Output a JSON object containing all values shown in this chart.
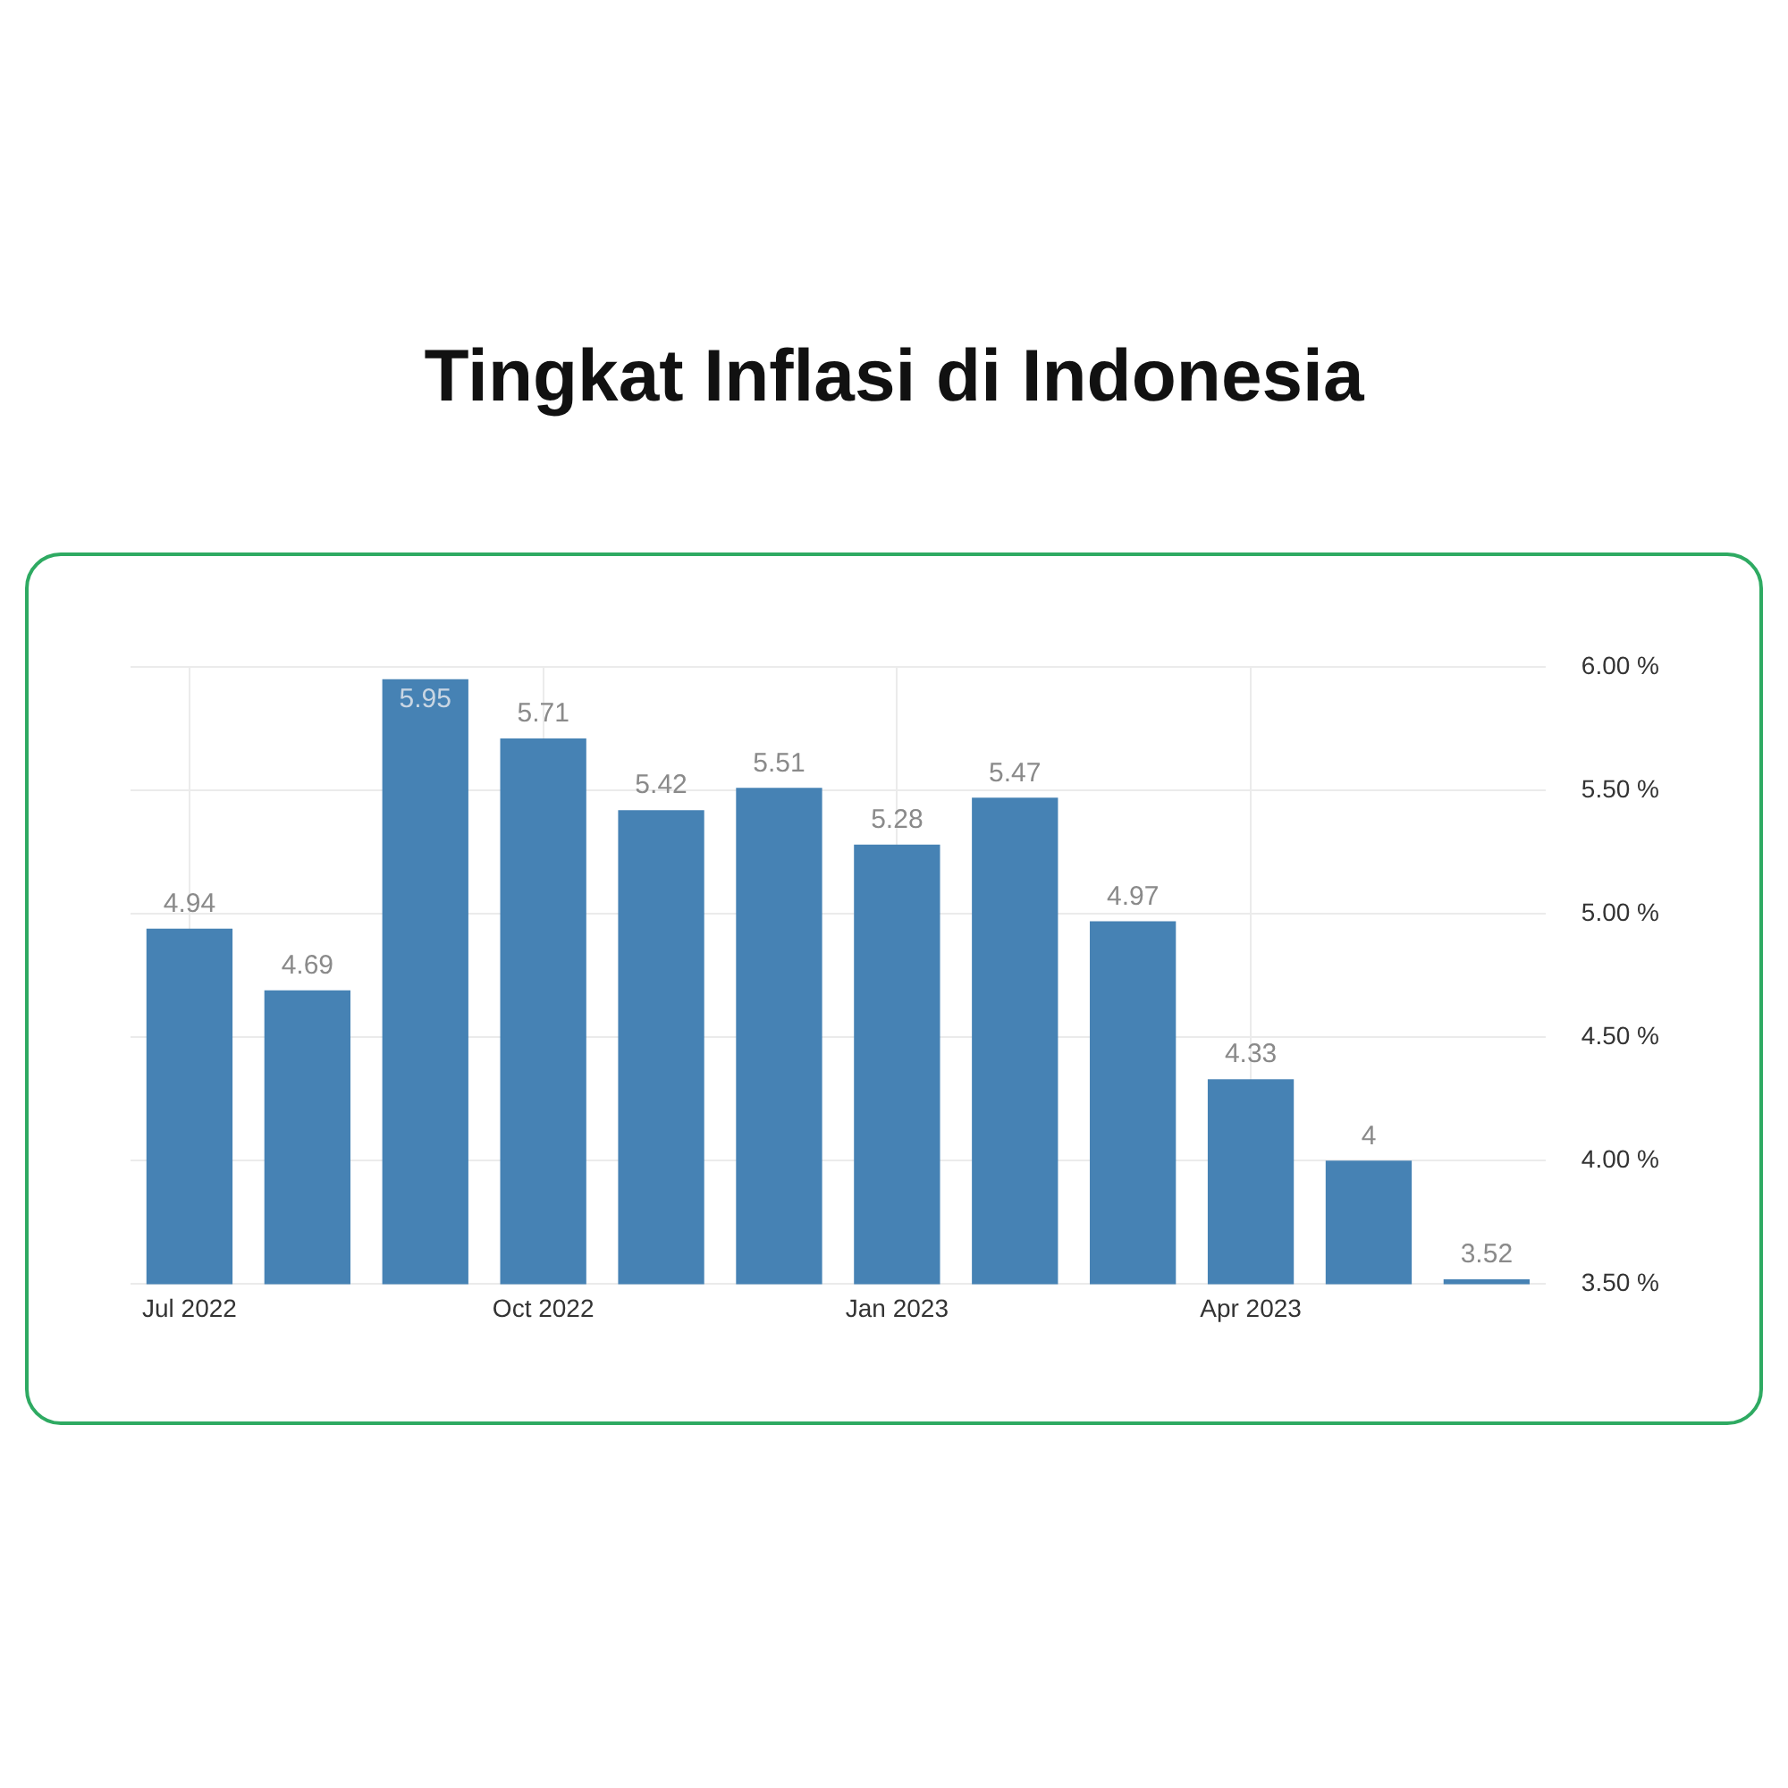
{
  "chart_data": {
    "type": "bar",
    "title": "Tingkat Inflasi di Indonesia",
    "categories": [
      "Jul 2022",
      null,
      null,
      "Oct 2022",
      null,
      null,
      "Jan 2023",
      null,
      null,
      "Apr 2023",
      null,
      null
    ],
    "values": [
      4.94,
      4.69,
      5.95,
      5.71,
      5.42,
      5.51,
      5.28,
      5.47,
      4.97,
      4.33,
      4,
      3.52
    ],
    "color": "#4682b4",
    "ylim": [
      3.5,
      6
    ],
    "yticks": [
      {
        "value": 3.5,
        "label": "3.50 %"
      },
      {
        "value": 4,
        "label": "4.00 %"
      },
      {
        "value": 4.5,
        "label": "4.50 %"
      },
      {
        "value": 5,
        "label": "5.00 %"
      },
      {
        "value": 5.5,
        "label": "5.50 %"
      },
      {
        "value": 6,
        "label": "6.00 %"
      }
    ],
    "grid": true,
    "data_labels": true
  }
}
